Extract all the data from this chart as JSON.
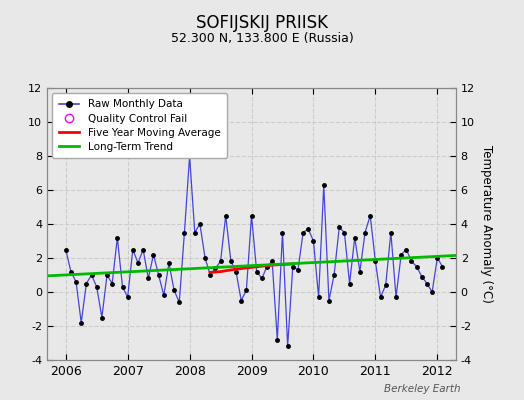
{
  "title": "SOFIJSKIJ PRIISK",
  "subtitle": "52.300 N, 133.800 E (Russia)",
  "ylabel": "Temperature Anomaly (°C)",
  "watermark": "Berkeley Earth",
  "ylim": [
    -4,
    12
  ],
  "yticks": [
    -4,
    -2,
    0,
    2,
    4,
    6,
    8,
    10,
    12
  ],
  "xlim": [
    2005.7,
    2012.3
  ],
  "xticks": [
    2006,
    2007,
    2008,
    2009,
    2010,
    2011,
    2012
  ],
  "bg_color": "#e8e8e8",
  "plot_bg_color": "#e8e8e8",
  "raw_color": "#4444dd",
  "raw_marker_color": "#000000",
  "five_yr_color": "#ff0000",
  "trend_color": "#00bb00",
  "raw_data": [
    2.5,
    1.2,
    0.6,
    -1.8,
    0.5,
    1.0,
    0.3,
    -1.5,
    1.0,
    0.5,
    3.2,
    0.3,
    -0.3,
    2.5,
    1.7,
    2.5,
    0.8,
    2.2,
    1.0,
    -0.2,
    1.7,
    0.1,
    -0.6,
    3.5,
    8.0,
    3.5,
    4.0,
    2.0,
    1.0,
    1.4,
    1.8,
    4.5,
    1.8,
    1.2,
    -0.5,
    0.1,
    4.5,
    1.2,
    0.8,
    1.5,
    1.8,
    -2.8,
    3.5,
    -3.2,
    1.5,
    1.3,
    3.5,
    3.7,
    3.0,
    -0.3,
    6.3,
    -0.5,
    1.0,
    3.8,
    3.5,
    0.5,
    3.2,
    1.2,
    3.5,
    4.5,
    1.8,
    -0.3,
    0.4,
    3.5,
    -0.3,
    2.2,
    2.5,
    1.8,
    1.5,
    0.9,
    0.5,
    0.0,
    2.0,
    1.5
  ],
  "five_yr_x": [
    2008.33,
    2008.5,
    2008.67,
    2008.83,
    2009.0,
    2009.17,
    2009.33,
    2009.5,
    2009.67
  ],
  "five_yr_y": [
    1.15,
    1.2,
    1.3,
    1.38,
    1.45,
    1.52,
    1.58,
    1.62,
    1.65
  ],
  "trend_x": [
    2005.7,
    2012.3
  ],
  "trend_y": [
    0.95,
    2.15
  ]
}
